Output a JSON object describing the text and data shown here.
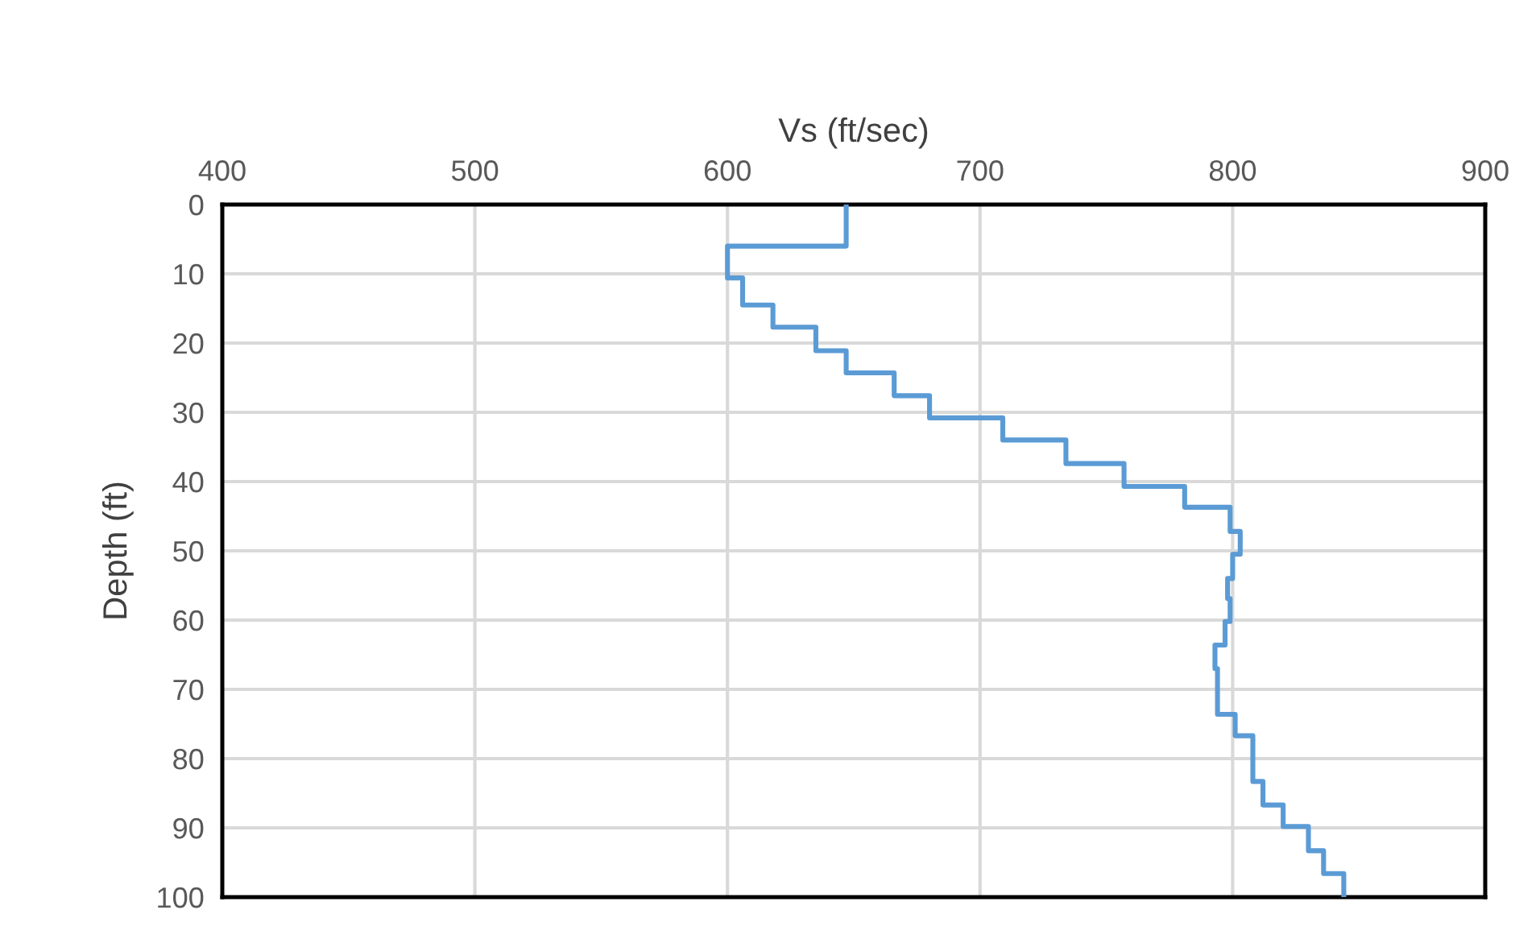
{
  "chart_data": {
    "type": "line",
    "xlabel": "Vs (ft/sec)",
    "ylabel": "Depth (ft)",
    "xlim": [
      400,
      900
    ],
    "xticks": [
      400,
      500,
      600,
      700,
      800,
      900
    ],
    "ylim": [
      100,
      0
    ],
    "yticks": [
      0,
      10,
      20,
      30,
      40,
      50,
      60,
      70,
      80,
      90,
      100
    ],
    "grid": true,
    "marker": "none",
    "line_style": "solid",
    "series": [
      {
        "color": "#5b9bd5",
        "x": [
          647,
          647,
          600,
          600,
          606,
          606,
          618,
          618,
          635,
          635,
          647,
          647,
          666,
          666,
          680,
          680,
          709,
          709,
          734,
          734,
          757,
          757,
          781,
          781,
          799,
          799,
          803,
          803,
          800,
          800,
          798,
          798,
          799,
          799,
          797,
          797,
          793,
          793,
          794,
          794,
          801,
          801,
          808,
          808,
          812,
          812,
          820,
          820,
          830,
          830,
          836,
          836,
          844,
          844
        ],
        "values": [
          0,
          6.0,
          6.0,
          10.6,
          10.6,
          14.5,
          14.5,
          17.7,
          17.7,
          21.1,
          21.1,
          24.3,
          24.3,
          27.6,
          27.6,
          30.8,
          30.8,
          34.0,
          34.0,
          37.4,
          37.4,
          40.7,
          40.7,
          43.7,
          43.7,
          47.2,
          47.2,
          50.5,
          50.5,
          54.0,
          54.0,
          56.9,
          56.9,
          60.2,
          60.2,
          63.6,
          63.6,
          67.0,
          67.0,
          73.6,
          73.6,
          76.7,
          76.7,
          83.3,
          83.3,
          86.7,
          86.7,
          89.8,
          89.8,
          93.3,
          93.3,
          96.6,
          96.6,
          100
        ]
      }
    ]
  }
}
